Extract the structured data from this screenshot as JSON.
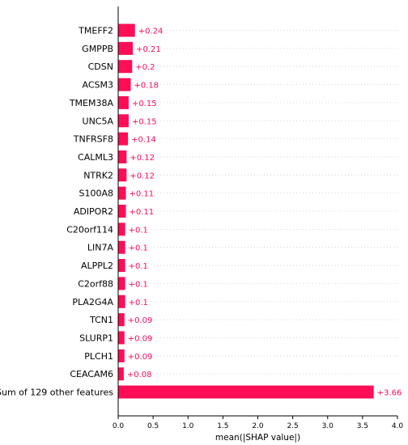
{
  "chart_data": {
    "type": "bar",
    "orientation": "horizontal",
    "categories": [
      "TMEFF2",
      "GMPPB",
      "CDSN",
      "ACSM3",
      "TMEM38A",
      "UNC5A",
      "TNFRSF8",
      "CALML3",
      "NTRK2",
      "S100A8",
      "ADIPOR2",
      "C20orf114",
      "LIN7A",
      "ALPPL2",
      "C2orf88",
      "PLA2G4A",
      "TCN1",
      "SLURP1",
      "PLCH1",
      "CEACAM6",
      "Sum of 129 other features"
    ],
    "values": [
      0.24,
      0.21,
      0.2,
      0.18,
      0.15,
      0.15,
      0.14,
      0.12,
      0.12,
      0.11,
      0.11,
      0.1,
      0.1,
      0.1,
      0.1,
      0.1,
      0.09,
      0.09,
      0.09,
      0.08,
      3.66
    ],
    "value_labels": [
      "+0.24",
      "+0.21",
      "+0.2",
      "+0.18",
      "+0.15",
      "+0.15",
      "+0.14",
      "+0.12",
      "+0.12",
      "+0.11",
      "+0.11",
      "+0.1",
      "+0.1",
      "+0.1",
      "+0.1",
      "+0.1",
      "+0.09",
      "+0.09",
      "+0.09",
      "+0.08",
      "+3.66"
    ],
    "xlabel": "mean(|SHAP value|)",
    "xlim": [
      0.0,
      4.0
    ],
    "xticks": [
      "0.0",
      "0.5",
      "1.0",
      "1.5",
      "2.0",
      "2.5",
      "3.0",
      "3.5",
      "4.0"
    ],
    "grid": "dotted horizontal lines per row",
    "colors": {
      "bar": "#ff0d57",
      "text": "#000000",
      "grid": "#cccccc"
    }
  }
}
